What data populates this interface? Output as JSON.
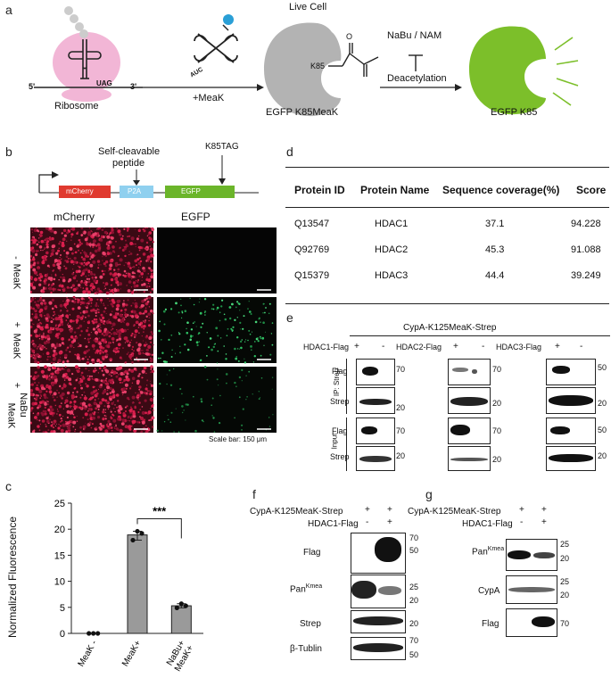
{
  "panels": {
    "a": "a",
    "b": "b",
    "c": "c",
    "d": "d",
    "e": "e",
    "f": "f",
    "g": "g"
  },
  "panel_a": {
    "five_prime": "5'",
    "three_prime": "3'",
    "codon": "UAG",
    "anticodon": "AUC",
    "ribosome_label": "Ribosome",
    "meak_label": "+MeaK",
    "live_cell_label": "Live Cell",
    "k85_label": "K85",
    "o_label": "O",
    "egfp_meak_label": "EGFP K85MeaK",
    "inhibitors_label": "NaBu / NAM",
    "deacetylation_label": "Deacetylation",
    "egfp_k85_label": "EGFP K85"
  },
  "panel_b": {
    "self_cleavable": "Self-cleavable",
    "peptide": "peptide",
    "k85tag": "K85TAG",
    "gene_mcherry": "mCherry",
    "gene_p2a": "P2A",
    "gene_egfp": "EGFP",
    "col_mcherry": "mCherry",
    "col_egfp": "EGFP",
    "row1_sign": "-",
    "row1_label": "MeaK",
    "row2_sign": "+",
    "row2_label": "MeaK",
    "row3_sign": "+",
    "row3_label1": "NaBu",
    "row3_label2": "MeaK",
    "scale_bar": "Scale bar: 150 μm"
  },
  "chart_data": {
    "type": "bar",
    "categories": [
      "MeaK -",
      "MeaK+",
      "NaBu+ MeaK+"
    ],
    "values": [
      0,
      18.9,
      5.3
    ],
    "points": [
      [
        0,
        0,
        0
      ],
      [
        17.9,
        19.6,
        19.2
      ],
      [
        4.9,
        5.7,
        5.3
      ]
    ],
    "ylabel": "Normalized Fluorescence",
    "ylim": [
      0,
      25
    ],
    "yticks": [
      0,
      5,
      10,
      15,
      20,
      25
    ],
    "significance": "***",
    "bar_color": "#9a9a9a"
  },
  "panel_d": {
    "headers": [
      "Protein ID",
      "Protein Name",
      "Sequence coverage(%)",
      "Score"
    ],
    "rows": [
      [
        "Q13547",
        "HDAC1",
        "37.1",
        "94.228"
      ],
      [
        "Q92769",
        "HDAC2",
        "45.3",
        "91.088"
      ],
      [
        "Q15379",
        "HDAC3",
        "44.4",
        "39.249"
      ]
    ]
  },
  "panel_e": {
    "title": "CypA-K125MeaK-Strep",
    "hdac1": "HDAC1-Flag",
    "hdac2": "HDAC2-Flag",
    "hdac3": "HDAC3-Flag",
    "plus": "+",
    "minus": "-",
    "ip_label": "IP: Strep",
    "input_label": "Input",
    "flag": "Flag",
    "strep": "Strep",
    "mw70": "70",
    "mw20": "20",
    "mw50": "50"
  },
  "panel_f": {
    "row1_label": "CypA-K125MeaK-Strep",
    "row2_label": "HDAC1-Flag",
    "plus": "+",
    "minus": "-",
    "flag": "Flag",
    "pan": "Pan",
    "pan_sup": "Kmea",
    "strep": "Strep",
    "tublin": "β-Tublin",
    "mw70": "70",
    "mw50": "50",
    "mw25": "25",
    "mw20": "20"
  },
  "panel_g": {
    "row1_label": "CypA-K125MeaK-Strep",
    "row2_label": "HDAC1-Flag",
    "plus": "+",
    "minus": "-",
    "pan": "Pan",
    "pan_sup": "Kmea",
    "cypa": "CypA",
    "flag": "Flag",
    "mw25": "25",
    "mw20": "20",
    "mw70": "70"
  }
}
